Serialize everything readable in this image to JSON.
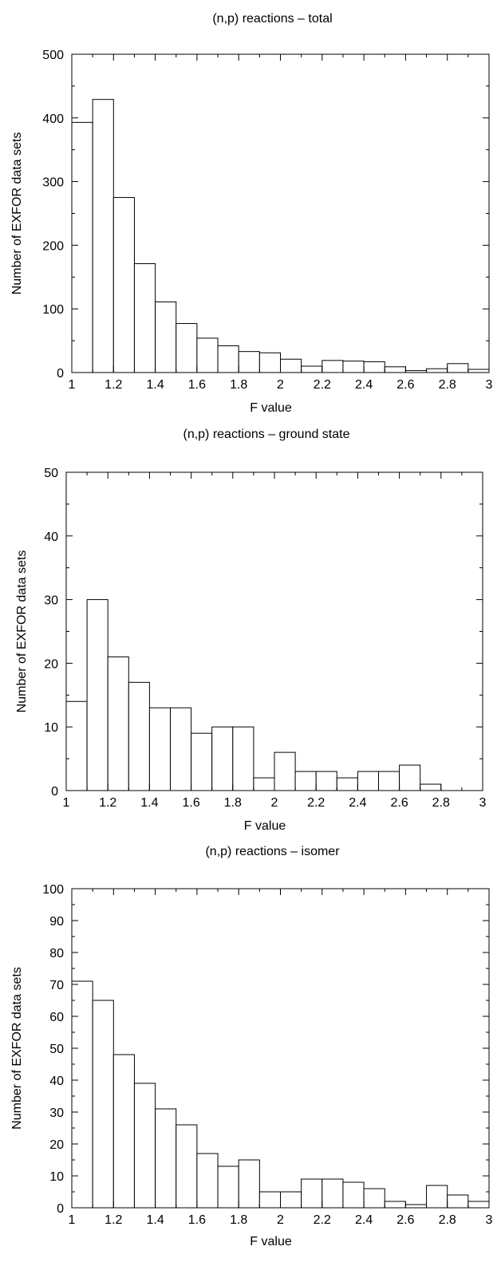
{
  "chart_data": [
    {
      "type": "bar",
      "title": "(n,p) reactions – total",
      "xlabel": "F value",
      "ylabel": "Number of EXFOR data sets",
      "xlim": [
        1,
        3
      ],
      "ylim": [
        0,
        500
      ],
      "bin_width": 0.1,
      "x_ticks": [
        "1",
        "1.2",
        "1.4",
        "1.6",
        "1.8",
        "2",
        "2.2",
        "2.4",
        "2.6",
        "2.8",
        "3"
      ],
      "y_ticks": [
        "0",
        "100",
        "200",
        "300",
        "400",
        "500"
      ],
      "bin_starts": [
        1.0,
        1.1,
        1.2,
        1.3,
        1.4,
        1.5,
        1.6,
        1.7,
        1.8,
        1.9,
        2.0,
        2.1,
        2.2,
        2.3,
        2.4,
        2.5,
        2.6,
        2.7,
        2.8,
        2.9
      ],
      "values": [
        393,
        429,
        275,
        171,
        111,
        77,
        54,
        42,
        33,
        31,
        21,
        10,
        19,
        18,
        17,
        9,
        3,
        6,
        14,
        5
      ],
      "grid": false
    },
    {
      "type": "bar",
      "title": "(n,p) reactions – ground state",
      "xlabel": "F value",
      "ylabel": "Number of EXFOR data sets",
      "xlim": [
        1,
        3
      ],
      "ylim": [
        0,
        50
      ],
      "bin_width": 0.1,
      "x_ticks": [
        "1",
        "1.2",
        "1.4",
        "1.6",
        "1.8",
        "2",
        "2.2",
        "2.4",
        "2.6",
        "2.8",
        "3"
      ],
      "y_ticks": [
        "0",
        "10",
        "20",
        "30",
        "40",
        "50"
      ],
      "bin_starts": [
        1.0,
        1.1,
        1.2,
        1.3,
        1.4,
        1.5,
        1.6,
        1.7,
        1.8,
        1.9,
        2.0,
        2.1,
        2.2,
        2.3,
        2.4,
        2.5,
        2.6,
        2.7,
        2.8,
        2.9
      ],
      "values": [
        14,
        30,
        21,
        17,
        13,
        13,
        9,
        10,
        10,
        2,
        6,
        3,
        3,
        2,
        3,
        3,
        4,
        1,
        0,
        0
      ],
      "grid": false
    },
    {
      "type": "bar",
      "title": "(n,p) reactions – isomer",
      "xlabel": "F value",
      "ylabel": "Number of EXFOR data sets",
      "xlim": [
        1,
        3
      ],
      "ylim": [
        0,
        100
      ],
      "bin_width": 0.1,
      "x_ticks": [
        "1",
        "1.2",
        "1.4",
        "1.6",
        "1.8",
        "2",
        "2.2",
        "2.4",
        "2.6",
        "2.8",
        "3"
      ],
      "y_ticks": [
        "0",
        "10",
        "20",
        "30",
        "40",
        "50",
        "60",
        "70",
        "80",
        "90",
        "100"
      ],
      "bin_starts": [
        1.0,
        1.1,
        1.2,
        1.3,
        1.4,
        1.5,
        1.6,
        1.7,
        1.8,
        1.9,
        2.0,
        2.1,
        2.2,
        2.3,
        2.4,
        2.5,
        2.6,
        2.7,
        2.8,
        2.9
      ],
      "values": [
        71,
        65,
        48,
        39,
        31,
        26,
        17,
        13,
        15,
        5,
        5,
        9,
        9,
        8,
        6,
        2,
        1,
        7,
        4,
        2
      ],
      "grid": false
    }
  ]
}
